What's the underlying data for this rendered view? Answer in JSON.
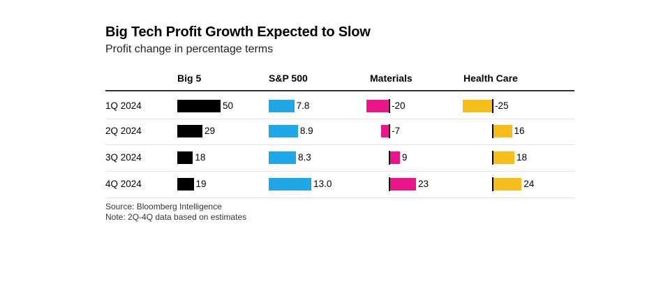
{
  "title": "Big Tech Profit Growth Expected to Slow",
  "subtitle": "Profit change in percentage terms",
  "source": "Source: Bloomberg Intelligence",
  "note": "Note: 2Q-4Q data based on estimates",
  "colors": {
    "big5": "#000000",
    "sp500": "#1fa7e8",
    "materials": "#ec168c",
    "healthcare": "#f6bd1a"
  },
  "chart_data": {
    "type": "bar",
    "categories": [
      "1Q 2024",
      "2Q 2024",
      "3Q 2024",
      "4Q 2024"
    ],
    "series": [
      {
        "name": "Big 5",
        "values": [
          50,
          29,
          18,
          19
        ],
        "labels": [
          "50",
          "29",
          "18",
          "19"
        ]
      },
      {
        "name": "S&P 500",
        "values": [
          7.8,
          8.9,
          8.3,
          13.0
        ],
        "labels": [
          "7.8",
          "8.9",
          "8.3",
          "13.0"
        ]
      },
      {
        "name": "Materials",
        "values": [
          -20,
          -7,
          9,
          23
        ],
        "labels": [
          "-20",
          "-7",
          "9",
          "23"
        ]
      },
      {
        "name": "Health Care",
        "values": [
          -25,
          16,
          18,
          24
        ],
        "labels": [
          "-25",
          "16",
          "18",
          "24"
        ]
      }
    ]
  }
}
